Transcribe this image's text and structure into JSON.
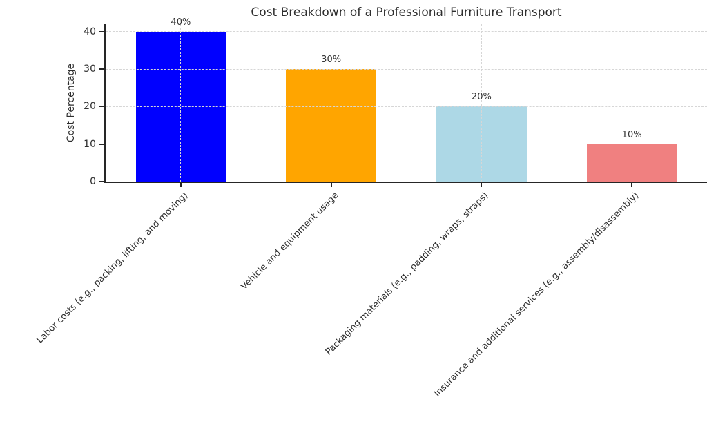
{
  "chart_data": {
    "type": "bar",
    "title": "Cost Breakdown of a Professional Furniture Transport",
    "xlabel": "",
    "ylabel": "Cost Percentage",
    "categories": [
      "Labor costs (e.g., packing, lifting, and moving)",
      "Vehicle and equipment usage",
      "Packaging materials (e.g., padding, wraps, straps)",
      "Insurance and additional services (e.g., assembly/disassembly)"
    ],
    "values": [
      40,
      30,
      20,
      10
    ],
    "bar_labels": [
      "40%",
      "30%",
      "20%",
      "10%"
    ],
    "bar_colors": [
      "#0000ff",
      "#ffa500",
      "#add8e6",
      "#f08080"
    ],
    "yticks": [
      0,
      10,
      20,
      30,
      40
    ],
    "ylim": [
      0,
      42
    ],
    "grid": {
      "style": "dashed",
      "axes": "both",
      "drawn_above_bars": true
    },
    "legend": null
  }
}
